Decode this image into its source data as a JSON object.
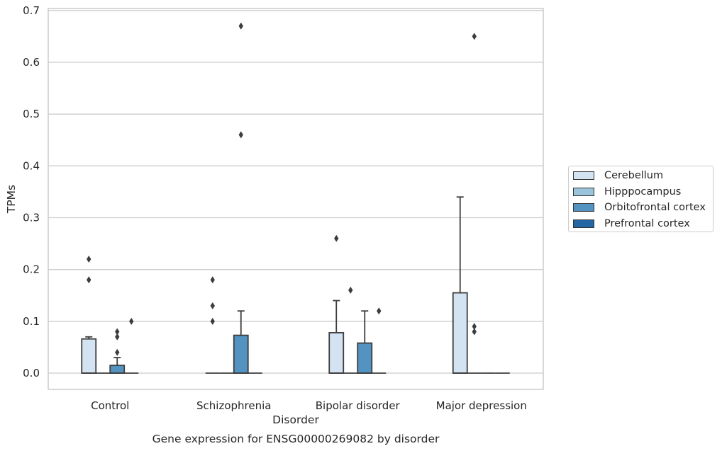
{
  "chart_data": {
    "type": "box",
    "title": "Gene expression for ENSG00000269082 by disorder",
    "xlabel": "Disorder",
    "ylabel": "TPMs",
    "ylim": [
      -0.032,
      0.705
    ],
    "yticks": [
      0.0,
      0.1,
      0.2,
      0.3,
      0.4,
      0.5,
      0.6,
      0.7
    ],
    "ytick_labels": [
      "0.0",
      "0.1",
      "0.2",
      "0.3",
      "0.4",
      "0.5",
      "0.6",
      "0.7"
    ],
    "grid": "horizontal",
    "legend_position": "right",
    "categories": [
      "Control",
      "Schizophrenia",
      "Bipolar disorder",
      "Major depression"
    ],
    "series": [
      {
        "name": "Cerebellum",
        "color": "#d4e3f2",
        "boxes": [
          {
            "min": 0.0,
            "q1": 0.0,
            "median": 0.0,
            "q3": 0.066,
            "max": 0.07,
            "outliers": [
              0.18,
              0.22
            ]
          },
          {
            "min": 0.0,
            "q1": 0.0,
            "median": 0.0,
            "q3": 0.0,
            "max": 0.0,
            "outliers": [
              0.1,
              0.13,
              0.18
            ]
          },
          {
            "min": 0.0,
            "q1": 0.0,
            "median": 0.0,
            "q3": 0.078,
            "max": 0.14,
            "outliers": [
              0.26
            ]
          },
          {
            "min": 0.0,
            "q1": 0.0,
            "median": 0.0,
            "q3": 0.155,
            "max": 0.34,
            "outliers": []
          }
        ]
      },
      {
        "name": "Hipppocampus",
        "color": "#9ac4db",
        "boxes": [
          {
            "min": 0.0,
            "q1": 0.0,
            "median": 0.0,
            "q3": 0.0,
            "max": 0.0,
            "outliers": []
          },
          {
            "min": 0.0,
            "q1": 0.0,
            "median": 0.0,
            "q3": 0.0,
            "max": 0.0,
            "outliers": []
          },
          {
            "min": 0.0,
            "q1": 0.0,
            "median": 0.0,
            "q3": 0.0,
            "max": 0.0,
            "outliers": [
              0.16
            ]
          },
          {
            "min": 0.0,
            "q1": 0.0,
            "median": 0.0,
            "q3": 0.0,
            "max": 0.0,
            "outliers": [
              0.08,
              0.09,
              0.65
            ]
          }
        ]
      },
      {
        "name": "Orbitofrontal cortex",
        "color": "#5393c1",
        "boxes": [
          {
            "min": 0.0,
            "q1": 0.0,
            "median": 0.0,
            "q3": 0.015,
            "max": 0.03,
            "outliers": [
              0.04,
              0.07,
              0.08
            ]
          },
          {
            "min": 0.0,
            "q1": 0.0,
            "median": 0.0,
            "q3": 0.073,
            "max": 0.12,
            "outliers": [
              0.46,
              0.67
            ]
          },
          {
            "min": 0.0,
            "q1": 0.0,
            "median": 0.0,
            "q3": 0.058,
            "max": 0.12,
            "outliers": []
          },
          {
            "min": 0.0,
            "q1": 0.0,
            "median": 0.0,
            "q3": 0.0,
            "max": 0.0,
            "outliers": []
          }
        ]
      },
      {
        "name": "Prefrontal cortex",
        "color": "#2466a4",
        "boxes": [
          {
            "min": 0.0,
            "q1": 0.0,
            "median": 0.0,
            "q3": 0.0,
            "max": 0.0,
            "outliers": [
              0.1
            ]
          },
          {
            "min": 0.0,
            "q1": 0.0,
            "median": 0.0,
            "q3": 0.0,
            "max": 0.0,
            "outliers": []
          },
          {
            "min": 0.0,
            "q1": 0.0,
            "median": 0.0,
            "q3": 0.0,
            "max": 0.0,
            "outliers": [
              0.12
            ]
          },
          {
            "min": 0.0,
            "q1": 0.0,
            "median": 0.0,
            "q3": 0.0,
            "max": 0.0,
            "outliers": []
          }
        ]
      }
    ]
  }
}
